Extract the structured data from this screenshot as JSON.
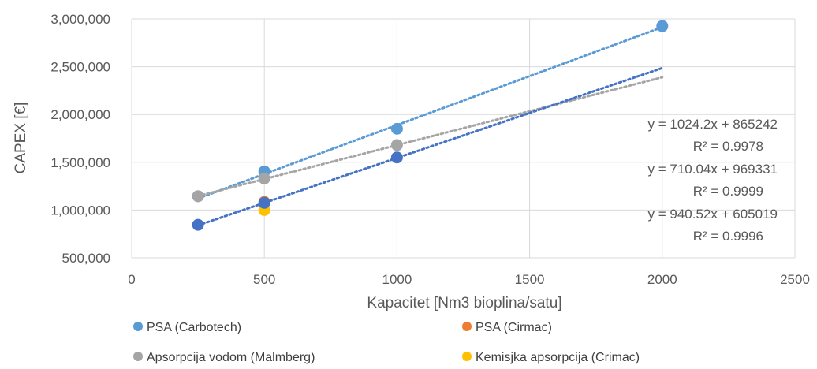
{
  "chart_data": {
    "type": "scatter",
    "title": "",
    "xlabel": "Kapacitet [Nm3 bioplina/satu]",
    "ylabel": "CAPEX [€]",
    "xlim": [
      0,
      2500
    ],
    "ylim": [
      500000,
      3000000
    ],
    "x_ticks": [
      0,
      500,
      1000,
      1500,
      2000,
      2500
    ],
    "y_ticks": [
      500000,
      1000000,
      1500000,
      2000000,
      2500000,
      3000000
    ],
    "x_tick_labels": [
      "0",
      "500",
      "1000",
      "1500",
      "2000",
      "2500"
    ],
    "y_tick_labels": [
      "500,000",
      "1,000,000",
      "1,500,000",
      "2,000,000",
      "2,500,000",
      "3,000,000"
    ],
    "grid": "vertical and horizontal",
    "legend_position": "bottom",
    "series": [
      {
        "name": "PSA (Carbotech)",
        "color": "#5b9bd5",
        "x": [
          250,
          500,
          1000,
          2000
        ],
        "y": [
          1145000,
          1405000,
          1850000,
          2925000
        ]
      },
      {
        "name": "PSA (Cirmac)",
        "color": "#ed7d31",
        "x": [
          500
        ],
        "y": [
          1085000
        ]
      },
      {
        "name": "Apsorpcija vodom (Malmberg)",
        "color": "#a5a5a5",
        "x": [
          250,
          500,
          1000
        ],
        "y": [
          1145000,
          1330000,
          1680000
        ]
      },
      {
        "name": "Kemisjka apsorpcija (Crimac)",
        "color": "#ffc000",
        "x": [
          500
        ],
        "y": [
          1000000
        ]
      },
      {
        "name": "",
        "color": "#4472c4",
        "x": [
          250,
          500,
          1000
        ],
        "y": [
          845000,
          1075000,
          1550000
        ]
      }
    ],
    "trendlines": [
      {
        "color": "#5b9bd5",
        "slope": 1024.2,
        "intercept": 865242,
        "x_range": [
          250,
          2000
        ],
        "equation": "y = 1024.2x + 865242",
        "r2": "R² = 0.9978"
      },
      {
        "color": "#a5a5a5",
        "slope": 710.04,
        "intercept": 969331,
        "x_range": [
          250,
          2000
        ],
        "equation": "y = 710.04x + 969331",
        "r2": "R² = 0.9999"
      },
      {
        "color": "#4472c4",
        "slope": 940.52,
        "intercept": 605019,
        "x_range": [
          250,
          2000
        ],
        "equation": "y = 940.52x + 605019",
        "r2": "R² = 0.9996"
      }
    ]
  }
}
